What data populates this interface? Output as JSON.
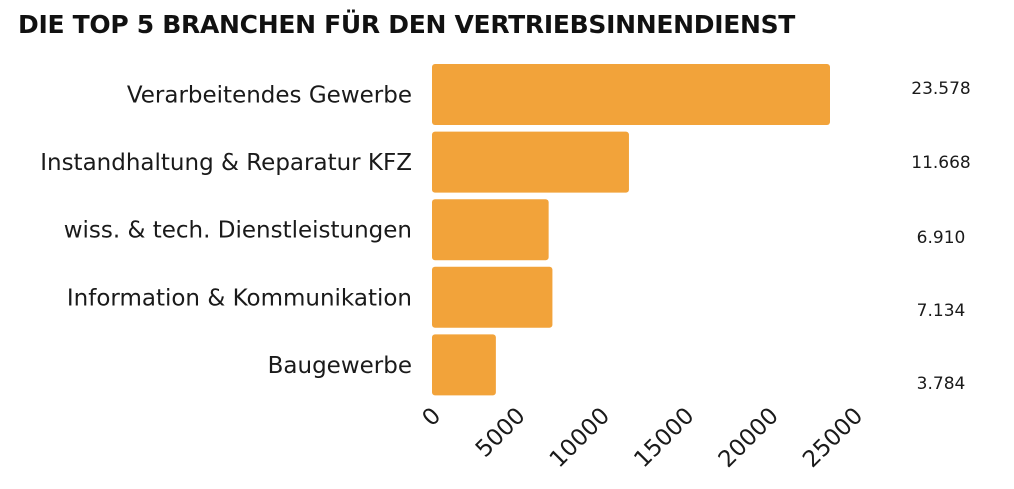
{
  "chart_data": {
    "type": "bar",
    "orientation": "horizontal",
    "title": "DIE TOP 5 BRANCHEN FÜR DEN VERTRIEBSINNENDIENST",
    "categories": [
      "Verarbeitendes Gewerbe",
      "Instandhaltung & Reparatur KFZ",
      "wiss. & tech. Dienstleistungen",
      "Information & Kommunikation",
      "Baugewerbe"
    ],
    "values": [
      23578,
      11668,
      6910,
      7134,
      3784
    ],
    "value_labels": [
      "23.578",
      "11.668",
      "6.910",
      "7.134",
      "3.784"
    ],
    "x_ticks": [
      "0",
      "5000",
      "10000",
      "15000",
      "20000",
      "25000"
    ],
    "xlim": [
      0,
      25000
    ],
    "grid": false,
    "legend": "none",
    "bar_color": "#f2a33a"
  }
}
